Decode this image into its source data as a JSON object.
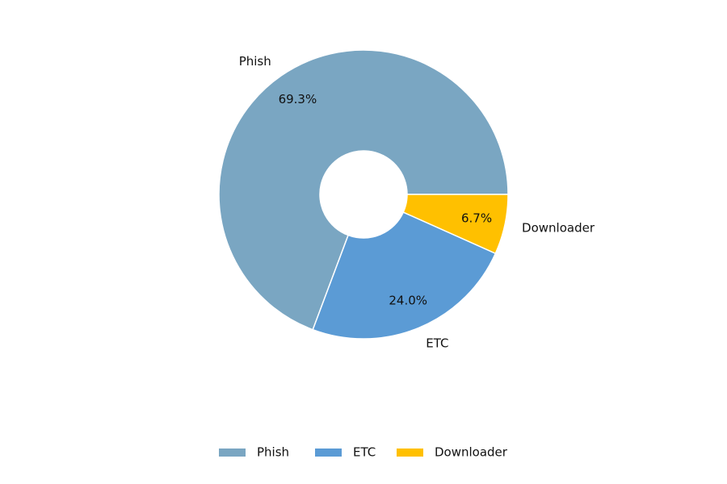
{
  "chart_data": {
    "type": "donut",
    "categories": [
      "Phish",
      "ETC",
      "Downloader"
    ],
    "values": [
      69.3,
      24.0,
      6.7
    ],
    "value_labels": [
      "69.3%",
      "24.0%",
      "6.7%"
    ],
    "colors": [
      "#7aa6c2",
      "#5b9bd5",
      "#ffc000"
    ],
    "legend": "bottom"
  }
}
